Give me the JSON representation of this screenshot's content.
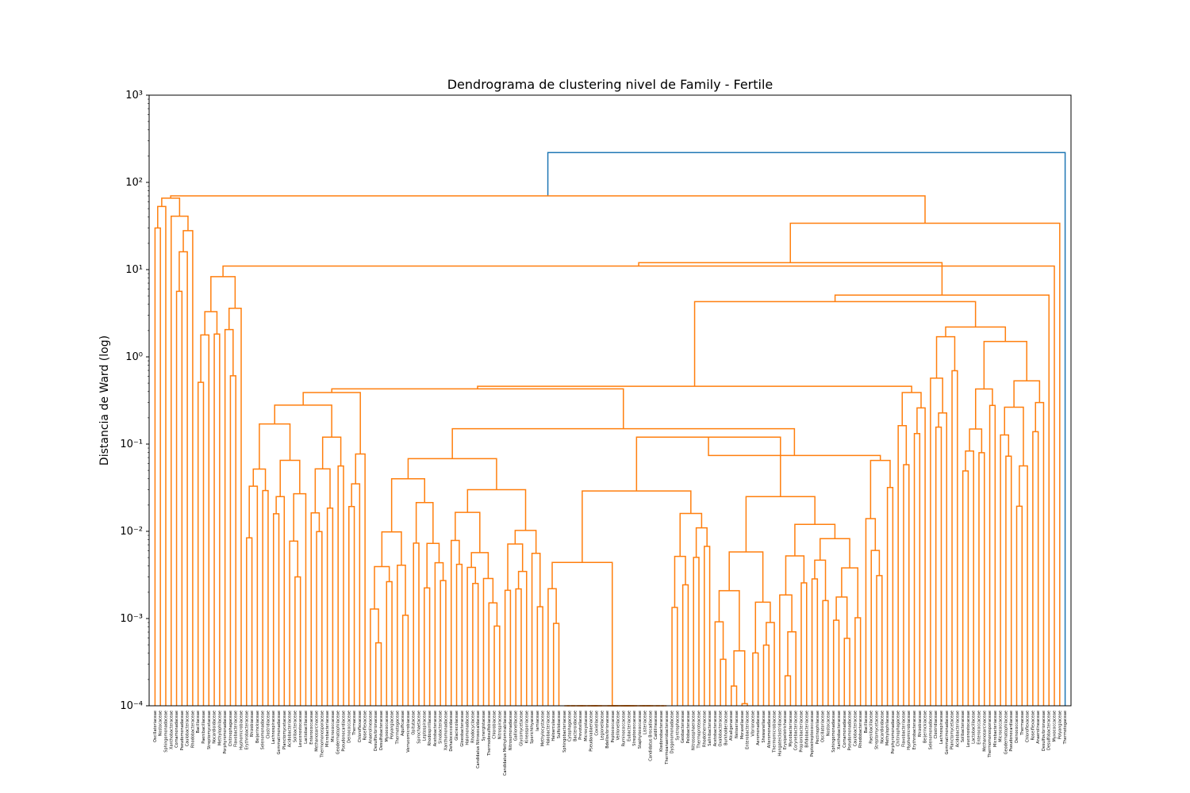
{
  "chart_data": {
    "type": "dendrogram",
    "title": "Dendrograma de clustering nivel de Family - Fertile",
    "ylabel": "Distancia de Ward (log)",
    "xlabel": "",
    "yscale": "log",
    "ylim": [
      0.0001,
      1000
    ],
    "yticks": [
      {
        "value": 0.0001,
        "label": "10⁻⁴"
      },
      {
        "value": 0.001,
        "label": "10⁻³"
      },
      {
        "value": 0.01,
        "label": "10⁻²"
      },
      {
        "value": 0.1,
        "label": "10⁻¹"
      },
      {
        "value": 1,
        "label": "10⁰"
      },
      {
        "value": 10,
        "label": "10¹"
      },
      {
        "value": 100,
        "label": "10²"
      },
      {
        "value": 1000,
        "label": "10³"
      }
    ],
    "grid": false,
    "colors": {
      "cluster": "#ff7f0e",
      "above_threshold": "#1f77b4"
    },
    "root": {
      "height": 220,
      "color": "#1f77b4",
      "children": [
        {
          "height": 70,
          "color": "#ff7f0e"
        },
        {
          "height": 12,
          "color": "#ff7f0e"
        }
      ]
    },
    "merges": [
      {
        "height": 220,
        "color": "#1f77b4"
      },
      {
        "height": 70,
        "color": "#ff7f0e"
      },
      {
        "height": 66,
        "color": "#ff7f0e"
      },
      {
        "height": 53,
        "color": "#ff7f0e"
      },
      {
        "height": 41,
        "color": "#ff7f0e"
      },
      {
        "height": 34,
        "color": "#ff7f0e"
      },
      {
        "height": 28,
        "color": "#ff7f0e"
      },
      {
        "height": 12,
        "color": "#ff7f0e"
      },
      {
        "height": 11,
        "color": "#ff7f0e"
      },
      {
        "height": 5.1,
        "color": "#ff7f0e"
      },
      {
        "height": 4.3,
        "color": "#ff7f0e"
      },
      {
        "height": 2.2,
        "color": "#ff7f0e"
      },
      {
        "height": 1.7,
        "color": "#ff7f0e"
      },
      {
        "height": 1.0,
        "color": "#ff7f0e"
      },
      {
        "height": 0.65,
        "color": "#ff7f0e"
      },
      {
        "height": 0.46,
        "color": "#ff7f0e"
      },
      {
        "height": 0.39,
        "color": "#ff7f0e"
      },
      {
        "height": 0.28,
        "color": "#ff7f0e"
      },
      {
        "height": 0.12,
        "color": "#ff7f0e"
      },
      {
        "height": 0.074,
        "color": "#ff7f0e"
      },
      {
        "height": 0.068,
        "color": "#ff7f0e"
      },
      {
        "height": 0.029,
        "color": "#ff7f0e"
      },
      {
        "height": 0.025,
        "color": "#ff7f0e"
      },
      {
        "height": 0.012,
        "color": "#ff7f0e"
      },
      {
        "height": 0.0058,
        "color": "#ff7f0e"
      },
      {
        "height": 0.0044,
        "color": "#ff7f0e"
      },
      {
        "height": 0.0022,
        "color": "#ff7f0e"
      },
      {
        "height": 0.00088,
        "color": "#ff7f0e"
      }
    ],
    "leaf_labels": [
      "Oscillatoriaceae",
      "Nostocaceae",
      "Sphingomonadaceae",
      "Xanthobacteraceae",
      "Comamonadaceae",
      "Pseudomonadaceae",
      "Caulobacteraceae",
      "Rhodobacteraceae",
      "Bacillaceae",
      "Paenibacillaceae",
      "Streptomycetaceae",
      "Nocardioidaceae",
      "Methylophilaceae",
      "Porphyromonadaceae",
      "Chitinophagaceae",
      "Flavobacteriaceae",
      "Hyphomicrobiaceae",
      "Erythrobacteraceae",
      "Rhizobiaceae",
      "Beijerinckiaceae",
      "Selenomonadaceae",
      "Clostridiaceae",
      "Lachnospiraceae",
      "Gemmatimonadaceae",
      "Planctomycetaceae",
      "Acidobacteriaceae",
      "Solibacteraceae",
      "Leuconostocaceae",
      "Lactobacillaceae",
      "Enterococcaceae",
      "Methanosarcinaceae",
      "Thermomonosporaceae",
      "Microbacteriaceae",
      "Micrococcaceae",
      "Geodermatophilaceae",
      "Pseudonocardiaceae",
      "Deinococcaceae",
      "Thermaceae",
      "Chloroflexaceae",
      "Roseiflexaceae",
      "Anaerolineaceae",
      "Desulfovibrionaceae",
      "Desulfobacteraceae",
      "Myxococcaceae",
      "Polyangiaceae",
      "Thermotogaceae",
      "Aquificaceae",
      "Verrucomicrobiaceae",
      "Opitutaceae",
      "Spirochaetaceae",
      "Leptospiraceae",
      "Rhodospirillaceae",
      "Acetobacteraceae",
      "Sinobacteraceae",
      "Xanthomonadaceae",
      "Dehalococcoidaceae",
      "Glaciecolaceae",
      "Gloeobacteraceae",
      "Halomonadaceae",
      "Rhodocyclaceae",
      "Candidatus Nitrosocaldaceae",
      "Synergistaceae",
      "Thermodesulfobiaceae",
      "Chlorobiaceae",
      "Nitrospiraceae",
      "Candidatus Methylomirabilaceae",
      "Nitrosomonadaceae",
      "Gallionellaceae",
      "Glycomycetaceae",
      "Kineosporiaceae",
      "Sporichthyaceae",
      "Iamiaceae",
      "Methylocystaceae",
      "Halobacteriaceae",
      "Haloarculaceae",
      "Sulfolobaceae",
      "Sphingobacteriaceae",
      "Cytophagaceae",
      "Bacteroidaceae",
      "Prevotellaceae",
      "Microcystaceae",
      "Pseudanabaenaceae",
      "Coxiellaceae",
      "Legionellaceae",
      "Bdellovibrionaceae",
      "Peptococcaceae",
      "Veillonellaceae",
      "Ruminococcaceae",
      "Eubacteriaceae",
      "Streptococcaceae",
      "Staphylococcaceae",
      "Listeriaceae",
      "Candidatus Brocadiaceae",
      "Caldilineaceae",
      "Ktedonobacteraceae",
      "Thermoanaerobacteraceae",
      "Dysgonomonadaceae",
      "Syntrophaceae",
      "Geobacteraceae",
      "Pelobacteraceae",
      "Nitrososphaeraceae",
      "Thermoproteaceae",
      "Rhodothermaceae",
      "Salinibacteraceae",
      "Acetobacteraceae",
      "Oxalobacteraceae",
      "Burkholderiaceae",
      "Alcaligenaceae",
      "Neisseriaceae",
      "Moraxellaceae",
      "Enterobacteriaceae",
      "Vibrionaceae",
      "Aeromonadaceae",
      "Shewanellaceae",
      "Alteromonadaceae",
      "Thermomicrobiaceae",
      "Hungateiclostridiaceae",
      "Erysipelotrichaceae",
      "Mycobacteriaceae",
      "Corynebacteriaceae",
      "Propionibacteriaceae",
      "Bifidobacteriaceae",
      "Peptostreptococcaceae",
      "Pectinophilaceae"
    ]
  }
}
